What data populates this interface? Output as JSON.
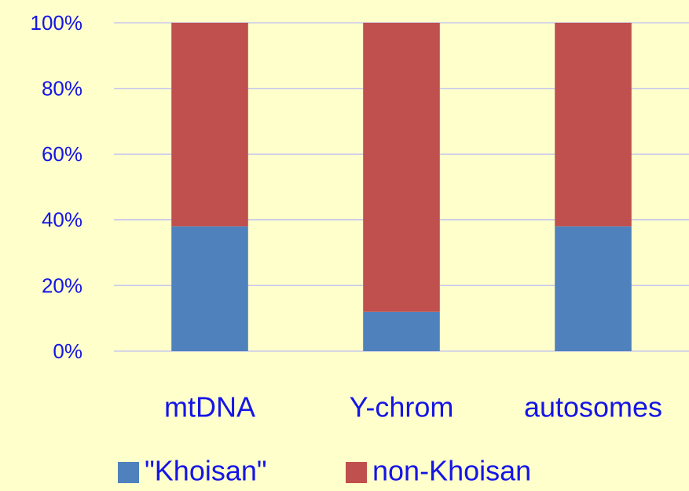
{
  "chart_data": {
    "type": "stacked_bar",
    "categories": [
      "mtDNA",
      "Y-chrom",
      "autosomes"
    ],
    "series": [
      {
        "name": "\"Khoisan\"",
        "color": "#4f81bd",
        "values": [
          38,
          12,
          38
        ]
      },
      {
        "name": "non-Khoisan",
        "color": "#c0504d",
        "values": [
          62,
          88,
          62
        ]
      }
    ],
    "ylim": [
      0,
      100
    ],
    "yticks": [
      {
        "value": 0,
        "label": "0%"
      },
      {
        "value": 20,
        "label": "20%"
      },
      {
        "value": 40,
        "label": "40%"
      },
      {
        "value": 60,
        "label": "60%"
      },
      {
        "value": 80,
        "label": "80%"
      },
      {
        "value": 100,
        "label": "100%"
      }
    ],
    "grid": true,
    "legend": "bottom"
  }
}
